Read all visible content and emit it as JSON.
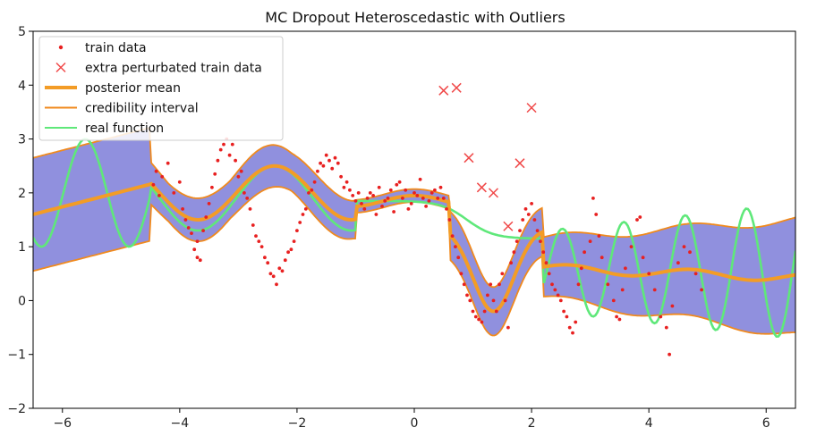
{
  "chart_data": {
    "type": "line",
    "title": "MC Dropout Heteroscedastic with Outliers",
    "xlabel": "",
    "ylabel": "",
    "xlim": [
      -6.5,
      6.5
    ],
    "ylim": [
      -2,
      5
    ],
    "xticks": [
      -6,
      -4,
      -2,
      0,
      2,
      4,
      6
    ],
    "yticks": [
      -2,
      -1,
      0,
      1,
      2,
      3,
      4,
      5
    ],
    "xtick_labels": [
      "−6",
      "−4",
      "−2",
      "0",
      "2",
      "4",
      "6"
    ],
    "ytick_labels": [
      "−2",
      "−1",
      "0",
      "1",
      "2",
      "3",
      "4",
      "5"
    ],
    "grid": false,
    "legend_position": "top-left",
    "legend": [
      {
        "label": "train data",
        "marker": "dot",
        "color": "#e82020"
      },
      {
        "label": "extra perturbated train data",
        "marker": "x",
        "color": "#f04848"
      },
      {
        "label": "posterior mean",
        "marker": "thick-line",
        "color": "#f39c26"
      },
      {
        "label": "credibility interval",
        "marker": "line",
        "color": "#f08a1e"
      },
      {
        "label": "real function",
        "marker": "line",
        "color": "#5fe87a"
      }
    ],
    "colors": {
      "band": "#7c7cd8",
      "posterior_mean": "#f39c26",
      "credibility_interval": "#f08a1e",
      "real_function": "#5fe87a",
      "train_data": "#e82020",
      "extra_points": "#f04848"
    },
    "extra_perturbated_train_data": [
      {
        "x": 0.5,
        "y": 3.9
      },
      {
        "x": 0.72,
        "y": 3.95
      },
      {
        "x": 0.93,
        "y": 2.65
      },
      {
        "x": 1.15,
        "y": 2.1
      },
      {
        "x": 1.35,
        "y": 2.0
      },
      {
        "x": 1.6,
        "y": 1.38
      },
      {
        "x": 1.8,
        "y": 2.55
      },
      {
        "x": 2.0,
        "y": 3.58
      }
    ],
    "train_data": [
      {
        "x": -4.4,
        "y": 2.4
      },
      {
        "x": -4.3,
        "y": 2.3
      },
      {
        "x": -4.2,
        "y": 2.55
      },
      {
        "x": -4.1,
        "y": 2.0
      },
      {
        "x": -4.45,
        "y": 2.15
      },
      {
        "x": -4.35,
        "y": 1.95
      },
      {
        "x": -4.0,
        "y": 2.2
      },
      {
        "x": -3.95,
        "y": 1.7
      },
      {
        "x": -3.9,
        "y": 1.5
      },
      {
        "x": -3.85,
        "y": 1.35
      },
      {
        "x": -3.8,
        "y": 1.25
      },
      {
        "x": -3.75,
        "y": 0.95
      },
      {
        "x": -3.7,
        "y": 0.8
      },
      {
        "x": -3.65,
        "y": 0.75
      },
      {
        "x": -3.7,
        "y": 1.1
      },
      {
        "x": -3.6,
        "y": 1.3
      },
      {
        "x": -3.55,
        "y": 1.55
      },
      {
        "x": -3.5,
        "y": 1.8
      },
      {
        "x": -3.45,
        "y": 2.1
      },
      {
        "x": -3.4,
        "y": 2.35
      },
      {
        "x": -3.35,
        "y": 2.6
      },
      {
        "x": -3.3,
        "y": 2.8
      },
      {
        "x": -3.25,
        "y": 2.9
      },
      {
        "x": -3.2,
        "y": 3.0
      },
      {
        "x": -3.15,
        "y": 2.7
      },
      {
        "x": -3.1,
        "y": 2.9
      },
      {
        "x": -3.05,
        "y": 2.6
      },
      {
        "x": -3.0,
        "y": 2.3
      },
      {
        "x": -2.95,
        "y": 2.4
      },
      {
        "x": -2.9,
        "y": 2.0
      },
      {
        "x": -2.85,
        "y": 1.9
      },
      {
        "x": -2.8,
        "y": 1.7
      },
      {
        "x": -2.75,
        "y": 1.4
      },
      {
        "x": -2.7,
        "y": 1.2
      },
      {
        "x": -2.65,
        "y": 1.1
      },
      {
        "x": -2.6,
        "y": 1.0
      },
      {
        "x": -2.55,
        "y": 0.8
      },
      {
        "x": -2.5,
        "y": 0.7
      },
      {
        "x": -2.45,
        "y": 0.5
      },
      {
        "x": -2.4,
        "y": 0.45
      },
      {
        "x": -2.35,
        "y": 0.3
      },
      {
        "x": -2.3,
        "y": 0.6
      },
      {
        "x": -2.25,
        "y": 0.55
      },
      {
        "x": -2.2,
        "y": 0.75
      },
      {
        "x": -2.15,
        "y": 0.9
      },
      {
        "x": -2.1,
        "y": 0.95
      },
      {
        "x": -2.05,
        "y": 1.1
      },
      {
        "x": -2.0,
        "y": 1.3
      },
      {
        "x": -1.95,
        "y": 1.45
      },
      {
        "x": -1.9,
        "y": 1.6
      },
      {
        "x": -1.85,
        "y": 1.7
      },
      {
        "x": -1.8,
        "y": 2.0
      },
      {
        "x": -1.75,
        "y": 2.05
      },
      {
        "x": -1.7,
        "y": 2.2
      },
      {
        "x": -1.65,
        "y": 2.4
      },
      {
        "x": -1.6,
        "y": 2.55
      },
      {
        "x": -1.55,
        "y": 2.5
      },
      {
        "x": -1.5,
        "y": 2.7
      },
      {
        "x": -1.45,
        "y": 2.6
      },
      {
        "x": -1.4,
        "y": 2.45
      },
      {
        "x": -1.35,
        "y": 2.65
      },
      {
        "x": -1.3,
        "y": 2.55
      },
      {
        "x": -1.25,
        "y": 2.3
      },
      {
        "x": -1.2,
        "y": 2.1
      },
      {
        "x": -1.15,
        "y": 2.2
      },
      {
        "x": -1.1,
        "y": 2.05
      },
      {
        "x": -1.05,
        "y": 1.95
      },
      {
        "x": -1.0,
        "y": 1.85
      },
      {
        "x": -0.95,
        "y": 2.0
      },
      {
        "x": -0.9,
        "y": 1.8
      },
      {
        "x": -0.85,
        "y": 1.7
      },
      {
        "x": -0.8,
        "y": 1.9
      },
      {
        "x": -0.75,
        "y": 2.0
      },
      {
        "x": -0.7,
        "y": 1.95
      },
      {
        "x": -0.65,
        "y": 1.6
      },
      {
        "x": -0.6,
        "y": 2.1
      },
      {
        "x": -0.55,
        "y": 1.75
      },
      {
        "x": -0.5,
        "y": 1.85
      },
      {
        "x": -0.45,
        "y": 1.9
      },
      {
        "x": -0.4,
        "y": 2.05
      },
      {
        "x": -0.35,
        "y": 1.65
      },
      {
        "x": -0.3,
        "y": 2.15
      },
      {
        "x": -0.25,
        "y": 2.2
      },
      {
        "x": -0.2,
        "y": 1.9
      },
      {
        "x": -0.15,
        "y": 2.05
      },
      {
        "x": -0.1,
        "y": 1.7
      },
      {
        "x": -0.05,
        "y": 1.8
      },
      {
        "x": 0.0,
        "y": 2.0
      },
      {
        "x": 0.05,
        "y": 1.95
      },
      {
        "x": 0.1,
        "y": 2.25
      },
      {
        "x": 0.15,
        "y": 1.9
      },
      {
        "x": 0.2,
        "y": 1.75
      },
      {
        "x": 0.25,
        "y": 1.85
      },
      {
        "x": 0.3,
        "y": 2.0
      },
      {
        "x": 0.35,
        "y": 2.05
      },
      {
        "x": 0.4,
        "y": 1.9
      },
      {
        "x": 0.45,
        "y": 2.1
      },
      {
        "x": 0.5,
        "y": 1.9
      },
      {
        "x": 0.55,
        "y": 1.7
      },
      {
        "x": 0.6,
        "y": 1.5
      },
      {
        "x": 0.65,
        "y": 1.2
      },
      {
        "x": 0.7,
        "y": 1.0
      },
      {
        "x": 0.75,
        "y": 0.8
      },
      {
        "x": 0.8,
        "y": 0.5
      },
      {
        "x": 0.85,
        "y": 0.3
      },
      {
        "x": 0.9,
        "y": 0.1
      },
      {
        "x": 0.95,
        "y": 0.0
      },
      {
        "x": 1.0,
        "y": -0.2
      },
      {
        "x": 1.05,
        "y": -0.3
      },
      {
        "x": 1.1,
        "y": -0.35
      },
      {
        "x": 1.15,
        "y": -0.4
      },
      {
        "x": 1.2,
        "y": -0.2
      },
      {
        "x": 1.25,
        "y": 0.1
      },
      {
        "x": 1.3,
        "y": 0.3
      },
      {
        "x": 1.35,
        "y": 0.0
      },
      {
        "x": 1.4,
        "y": -0.2
      },
      {
        "x": 1.45,
        "y": 0.3
      },
      {
        "x": 1.5,
        "y": 0.5
      },
      {
        "x": 1.55,
        "y": 0.0
      },
      {
        "x": 1.6,
        "y": -0.5
      },
      {
        "x": 1.65,
        "y": 0.7
      },
      {
        "x": 1.7,
        "y": 0.9
      },
      {
        "x": 1.75,
        "y": 1.1
      },
      {
        "x": 1.8,
        "y": 1.3
      },
      {
        "x": 1.85,
        "y": 1.5
      },
      {
        "x": 1.9,
        "y": 1.7
      },
      {
        "x": 1.95,
        "y": 1.6
      },
      {
        "x": 2.0,
        "y": 1.8
      },
      {
        "x": 2.05,
        "y": 1.5
      },
      {
        "x": 2.1,
        "y": 1.3
      },
      {
        "x": 2.15,
        "y": 1.1
      },
      {
        "x": 2.2,
        "y": 0.9
      },
      {
        "x": 2.25,
        "y": 0.7
      },
      {
        "x": 2.3,
        "y": 0.5
      },
      {
        "x": 2.35,
        "y": 0.3
      },
      {
        "x": 2.4,
        "y": 0.2
      },
      {
        "x": 2.45,
        "y": 0.1
      },
      {
        "x": 2.5,
        "y": 0.0
      },
      {
        "x": 2.55,
        "y": -0.2
      },
      {
        "x": 2.6,
        "y": -0.3
      },
      {
        "x": 2.65,
        "y": -0.5
      },
      {
        "x": 2.7,
        "y": -0.6
      },
      {
        "x": 2.75,
        "y": -0.4
      },
      {
        "x": 2.8,
        "y": 0.3
      },
      {
        "x": 2.85,
        "y": 0.6
      },
      {
        "x": 2.9,
        "y": 0.9
      },
      {
        "x": 3.0,
        "y": 1.1
      },
      {
        "x": 3.05,
        "y": 1.9
      },
      {
        "x": 3.1,
        "y": 1.6
      },
      {
        "x": 3.15,
        "y": 1.2
      },
      {
        "x": 3.2,
        "y": 0.8
      },
      {
        "x": 3.3,
        "y": 0.3
      },
      {
        "x": 3.4,
        "y": 0.0
      },
      {
        "x": 3.45,
        "y": -0.3
      },
      {
        "x": 3.5,
        "y": -0.35
      },
      {
        "x": 3.55,
        "y": 0.2
      },
      {
        "x": 3.6,
        "y": 0.6
      },
      {
        "x": 3.7,
        "y": 1.0
      },
      {
        "x": 3.8,
        "y": 1.5
      },
      {
        "x": 3.85,
        "y": 1.55
      },
      {
        "x": 3.9,
        "y": 0.8
      },
      {
        "x": 4.0,
        "y": 0.5
      },
      {
        "x": 4.1,
        "y": 0.2
      },
      {
        "x": 4.2,
        "y": -0.3
      },
      {
        "x": 4.3,
        "y": -0.5
      },
      {
        "x": 4.35,
        "y": -1.0
      },
      {
        "x": 4.4,
        "y": -0.1
      },
      {
        "x": 4.5,
        "y": 0.7
      },
      {
        "x": 4.6,
        "y": 1.0
      },
      {
        "x": 4.7,
        "y": 0.9
      },
      {
        "x": 4.8,
        "y": 0.5
      },
      {
        "x": 4.9,
        "y": 0.2
      }
    ]
  }
}
